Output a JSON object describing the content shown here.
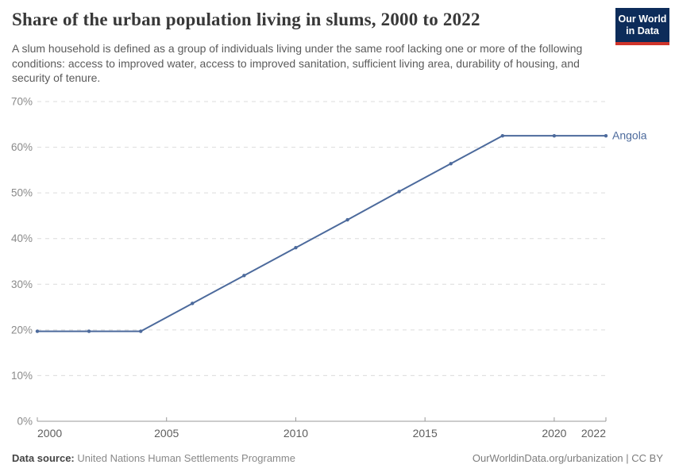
{
  "header": {
    "title": "Share of the urban population living in slums, 2000 to 2022",
    "subtitle": "A slum household is defined as a group of individuals living under the same roof lacking one or more of the following conditions: access to improved water, access to improved sanitation, sufficient living area, durability of housing, and security of tenure.",
    "logo": {
      "line1": "Our World",
      "line2": "in Data",
      "bg_color": "#0d2c5a",
      "accent_color": "#d0342a"
    }
  },
  "chart_data": {
    "type": "line",
    "title": "Share of the urban population living in slums, 2000 to 2022",
    "x": [
      2000,
      2002,
      2004,
      2006,
      2008,
      2010,
      2012,
      2014,
      2016,
      2018,
      2020,
      2022
    ],
    "series": [
      {
        "name": "Angola",
        "color": "#4c6a9c",
        "values": [
          19.7,
          19.7,
          19.7,
          25.8,
          31.9,
          38.0,
          44.1,
          50.3,
          56.4,
          62.5,
          62.5,
          62.5
        ]
      }
    ],
    "xlim": [
      2000,
      2022
    ],
    "ylim": [
      0,
      70
    ],
    "yticks": [
      0,
      10,
      20,
      30,
      40,
      50,
      60,
      70
    ],
    "ytick_suffix": "%",
    "xticks": [
      2000,
      2005,
      2010,
      2015,
      2020,
      2022
    ],
    "grid": "dashed-horizontal",
    "legend_position": "end-of-line-label",
    "entity_label": "Angola",
    "styles": {
      "gridline_color": "#dcdcdc",
      "axis_color": "#999999",
      "ytick_label_color": "#8a8a8a",
      "xtick_label_color": "#5e5e5e"
    }
  },
  "footer": {
    "datasource_label": "Data source:",
    "datasource_value": "United Nations Human Settlements Programme",
    "attribution": "OurWorldinData.org/urbanization | CC BY"
  }
}
